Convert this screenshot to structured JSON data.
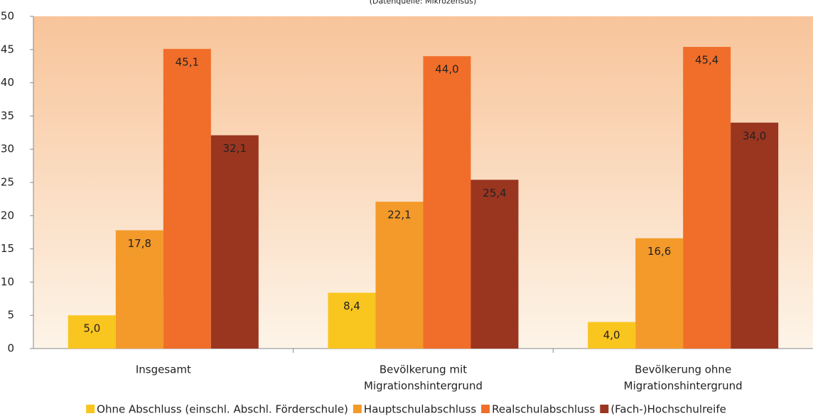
{
  "chart_data": {
    "type": "bar",
    "subtitle": "(Datenquelle: Mikrozensus)",
    "categories": [
      [
        "Insgesamt"
      ],
      [
        "Bevölkerung mit",
        "Migrationshintergrund"
      ],
      [
        "Bevölkerung ohne",
        "Migrationshintergrund"
      ]
    ],
    "series": [
      {
        "name": "Ohne Abschluss (einschl. Abschl. Förderschule)",
        "color": "#f9c51f",
        "values": [
          5.0,
          8.4,
          4.0
        ],
        "value_labels": [
          "5,0",
          "8,4",
          "4,0"
        ]
      },
      {
        "name": "Hauptschulabschluss",
        "color": "#f39a2a",
        "values": [
          17.8,
          22.1,
          16.6
        ],
        "value_labels": [
          "17,8",
          "22,1",
          "16,6"
        ]
      },
      {
        "name": "Realschulabschluss",
        "color": "#f06e2a",
        "values": [
          45.1,
          44.0,
          45.4
        ],
        "value_labels": [
          "45,1",
          "44,0",
          "45,4"
        ]
      },
      {
        "name": "(Fach-)Hochschulreife",
        "color": "#9a3520",
        "values": [
          32.1,
          25.4,
          34.0
        ],
        "value_labels": [
          "32,1",
          "25,4",
          "34,0"
        ]
      }
    ],
    "ylim": [
      0,
      50
    ],
    "yticks": [
      0,
      5,
      10,
      15,
      20,
      25,
      30,
      35,
      40,
      45,
      50
    ],
    "grid": false,
    "legend": "bottom"
  }
}
